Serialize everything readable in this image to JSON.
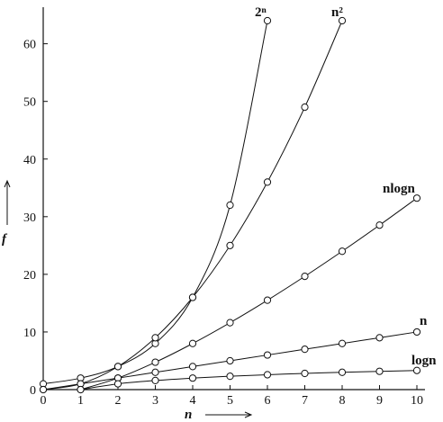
{
  "chart_data": {
    "type": "line",
    "title": "",
    "xlabel": "n",
    "ylabel": "f",
    "xlim": [
      0,
      10
    ],
    "ylim": [
      0,
      65
    ],
    "xticks": [
      "0",
      "1",
      "2",
      "3",
      "4",
      "5",
      "6",
      "7",
      "8",
      "9",
      "10"
    ],
    "yticks": [
      "0",
      "10",
      "20",
      "30",
      "40",
      "50",
      "60"
    ],
    "grid": false,
    "legend": "none (series labelled at line ends)",
    "line_color": "#111111",
    "marker": "open-circle",
    "series": [
      {
        "name": "2ⁿ",
        "x": [
          0,
          1,
          2,
          3,
          4,
          5,
          6
        ],
        "y": [
          1,
          2,
          4,
          8,
          16,
          32,
          64
        ]
      },
      {
        "name": "n²",
        "x": [
          0,
          1,
          2,
          3,
          4,
          5,
          6,
          7,
          8
        ],
        "y": [
          0,
          1,
          4,
          9,
          16,
          25,
          36,
          49,
          64
        ]
      },
      {
        "name": "nlogn",
        "x": [
          1,
          2,
          3,
          4,
          5,
          6,
          7,
          8,
          9,
          10
        ],
        "y": [
          0,
          2,
          4.75,
          8,
          11.61,
          15.51,
          19.65,
          24,
          28.53,
          33.22
        ]
      },
      {
        "name": "n",
        "x": [
          0,
          1,
          2,
          3,
          4,
          5,
          6,
          7,
          8,
          9,
          10
        ],
        "y": [
          0,
          1,
          2,
          3,
          4,
          5,
          6,
          7,
          8,
          9,
          10
        ]
      },
      {
        "name": "logn",
        "x": [
          1,
          2,
          3,
          4,
          5,
          6,
          7,
          8,
          9,
          10
        ],
        "y": [
          0,
          1,
          1.58,
          2,
          2.32,
          2.58,
          2.81,
          3,
          3.17,
          3.32
        ]
      }
    ]
  }
}
